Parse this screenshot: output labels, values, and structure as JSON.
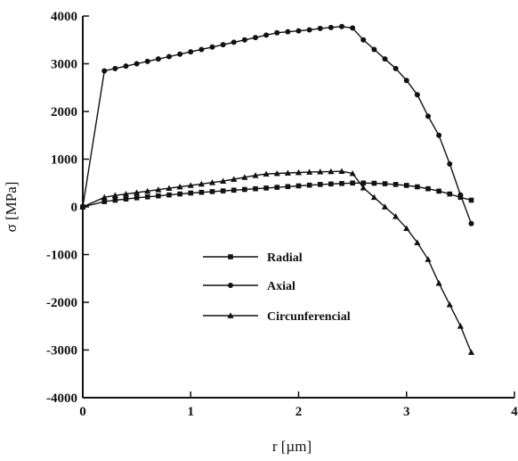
{
  "chart_data": {
    "type": "line",
    "title": "",
    "xlabel": "r [µm]",
    "ylabel": "σ [MPa]",
    "xlim": [
      0,
      4
    ],
    "ylim": [
      -4000,
      4000
    ],
    "x_ticks": [
      0,
      1,
      2,
      3,
      4
    ],
    "y_ticks": [
      -4000,
      -3000,
      -2000,
      -1000,
      0,
      1000,
      2000,
      3000,
      4000
    ],
    "legend_position": "center",
    "series": [
      {
        "name": "Radial",
        "marker": "square",
        "x": [
          0,
          0.2,
          0.3,
          0.4,
          0.5,
          0.6,
          0.7,
          0.8,
          0.9,
          1.0,
          1.1,
          1.2,
          1.3,
          1.4,
          1.5,
          1.6,
          1.7,
          1.8,
          1.9,
          2.0,
          2.1,
          2.2,
          2.3,
          2.4,
          2.5,
          2.6,
          2.7,
          2.8,
          2.9,
          3.0,
          3.1,
          3.2,
          3.3,
          3.4,
          3.5,
          3.6
        ],
        "y": [
          0,
          110,
          140,
          165,
          190,
          210,
          230,
          250,
          270,
          290,
          305,
          320,
          335,
          350,
          365,
          380,
          395,
          410,
          425,
          440,
          455,
          470,
          480,
          490,
          500,
          500,
          495,
          485,
          470,
          450,
          420,
          380,
          330,
          270,
          200,
          140
        ]
      },
      {
        "name": "Axial",
        "marker": "circle",
        "x": [
          0,
          0.2,
          0.3,
          0.4,
          0.5,
          0.6,
          0.7,
          0.8,
          0.9,
          1.0,
          1.1,
          1.2,
          1.3,
          1.4,
          1.5,
          1.6,
          1.7,
          1.8,
          1.9,
          2.0,
          2.1,
          2.2,
          2.3,
          2.4,
          2.5,
          2.6,
          2.7,
          2.8,
          2.9,
          3.0,
          3.1,
          3.2,
          3.3,
          3.4,
          3.5,
          3.6
        ],
        "y": [
          0,
          2850,
          2900,
          2950,
          3000,
          3050,
          3100,
          3150,
          3200,
          3250,
          3300,
          3350,
          3400,
          3450,
          3500,
          3550,
          3600,
          3650,
          3670,
          3690,
          3710,
          3740,
          3760,
          3780,
          3750,
          3500,
          3300,
          3100,
          2900,
          2650,
          2350,
          1900,
          1500,
          900,
          250,
          -350
        ]
      },
      {
        "name": "Circunferencial",
        "marker": "triangle",
        "x": [
          0,
          0.2,
          0.3,
          0.4,
          0.5,
          0.6,
          0.7,
          0.8,
          0.9,
          1.0,
          1.1,
          1.2,
          1.3,
          1.4,
          1.5,
          1.6,
          1.7,
          1.8,
          1.9,
          2.0,
          2.1,
          2.2,
          2.3,
          2.4,
          2.5,
          2.6,
          2.7,
          2.8,
          2.9,
          3.0,
          3.1,
          3.2,
          3.3,
          3.4,
          3.5,
          3.6
        ],
        "y": [
          0,
          200,
          240,
          270,
          300,
          330,
          360,
          390,
          420,
          450,
          480,
          510,
          540,
          580,
          620,
          660,
          690,
          700,
          710,
          720,
          730,
          735,
          740,
          745,
          700,
          400,
          200,
          0,
          -200,
          -450,
          -750,
          -1100,
          -1600,
          -2050,
          -2500,
          -3050
        ]
      }
    ]
  }
}
